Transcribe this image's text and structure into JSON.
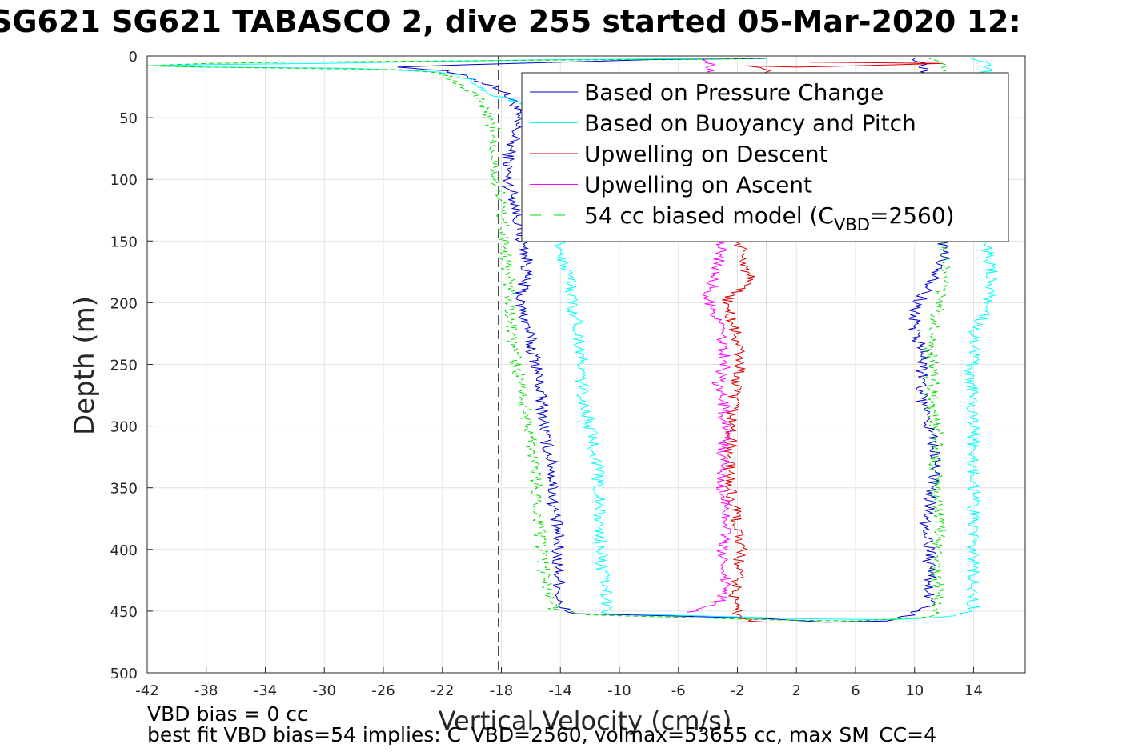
{
  "chart_data": {
    "type": "line",
    "title": "SG621 SG621 TABASCO 2, dive 255 started 05-Mar-2020 12:",
    "xlabel": "Vertical Velocity (cm/s)",
    "ylabel": "Depth (m)",
    "xlim": [
      -42,
      17.5
    ],
    "ylim": [
      500,
      0
    ],
    "y_reversed": true,
    "grid": true,
    "xticks": [
      -42,
      -38,
      -34,
      -30,
      -26,
      -22,
      -18,
      -14,
      -10,
      -6,
      -2,
      2,
      6,
      10,
      14
    ],
    "yticks": [
      0,
      50,
      100,
      150,
      200,
      250,
      300,
      350,
      400,
      450,
      500
    ],
    "reference_lines": [
      {
        "x": 0,
        "style": "solid",
        "color": "#000000"
      },
      {
        "x": -18.2,
        "style": "dashed",
        "color": "#000000"
      }
    ],
    "legend_position": "top-right",
    "legend": [
      {
        "label": "Based on Pressure Change"
      },
      {
        "label": "Based on Buoyancy and Pitch"
      },
      {
        "label": "Upwelling on Descent"
      },
      {
        "label": "Upwelling on Ascent"
      },
      {
        "label": "54 cc biased model (C",
        "sub": "VBD",
        "suffix": "=2560)"
      }
    ],
    "series": [
      {
        "name": "Based on Pressure Change",
        "color": "#0000cc",
        "style": "solid",
        "points": [
          [
            0,
            2
          ],
          [
            -8,
            3
          ],
          [
            -14,
            5
          ],
          [
            -20,
            7
          ],
          [
            -25,
            9
          ],
          [
            -22,
            12
          ],
          [
            -20,
            18
          ],
          [
            -18,
            27
          ],
          [
            -17,
            40
          ],
          [
            -17,
            60
          ],
          [
            -17.5,
            80
          ],
          [
            -17.6,
            100
          ],
          [
            -17,
            120
          ],
          [
            -16.6,
            150
          ],
          [
            -16.2,
            170
          ],
          [
            -16.5,
            185
          ],
          [
            -16.8,
            200
          ],
          [
            -16.2,
            220
          ],
          [
            -16,
            235
          ],
          [
            -15.6,
            250
          ],
          [
            -15.4,
            270
          ],
          [
            -15.2,
            290
          ],
          [
            -15,
            310
          ],
          [
            -14.6,
            330
          ],
          [
            -14.5,
            350
          ],
          [
            -14.4,
            370
          ],
          [
            -14.2,
            390
          ],
          [
            -14.2,
            410
          ],
          [
            -14,
            430
          ],
          [
            -14.2,
            446
          ],
          [
            -13,
            452
          ],
          [
            -6,
            454
          ],
          [
            0,
            456
          ],
          [
            4,
            459
          ],
          [
            8,
            458
          ],
          [
            10,
            452
          ],
          [
            11,
            445
          ],
          [
            11,
            420
          ],
          [
            11,
            400
          ],
          [
            10.8,
            380
          ],
          [
            11,
            360
          ],
          [
            11.5,
            330
          ],
          [
            11,
            300
          ],
          [
            10.5,
            280
          ],
          [
            10.5,
            260
          ],
          [
            10.6,
            240
          ],
          [
            10,
            225
          ],
          [
            10,
            205
          ],
          [
            10.8,
            190
          ],
          [
            11.5,
            180
          ],
          [
            12,
            165
          ],
          [
            12,
            150
          ],
          [
            11.5,
            120
          ],
          [
            10.5,
            100
          ],
          [
            11,
            80
          ],
          [
            11.5,
            60
          ],
          [
            11,
            40
          ],
          [
            10.8,
            20
          ],
          [
            10.5,
            8
          ],
          [
            10,
            2
          ]
        ]
      },
      {
        "name": "Based on Buoyancy and Pitch",
        "color": "#00ffff",
        "style": "solid",
        "points": [
          [
            -3,
            2
          ],
          [
            -15,
            3
          ],
          [
            -25,
            5
          ],
          [
            -30,
            6
          ],
          [
            -38,
            7
          ],
          [
            -42,
            8
          ],
          [
            -38,
            9
          ],
          [
            -28,
            10
          ],
          [
            -22,
            13
          ],
          [
            -20,
            20
          ],
          [
            -19,
            30
          ],
          [
            -16,
            40
          ],
          [
            -15,
            60
          ],
          [
            -14.2,
            80
          ],
          [
            -14.2,
            100
          ],
          [
            -14.2,
            120
          ],
          [
            -14,
            150
          ],
          [
            -13.8,
            170
          ],
          [
            -13.2,
            185
          ],
          [
            -13.2,
            200
          ],
          [
            -12.8,
            220
          ],
          [
            -12.6,
            240
          ],
          [
            -12.6,
            260
          ],
          [
            -12.4,
            280
          ],
          [
            -12,
            300
          ],
          [
            -11.5,
            330
          ],
          [
            -11.4,
            350
          ],
          [
            -11.4,
            370
          ],
          [
            -11.3,
            390
          ],
          [
            -11.2,
            410
          ],
          [
            -11,
            430
          ],
          [
            -10.8,
            445
          ],
          [
            -10.8,
            452
          ],
          [
            -4,
            454
          ],
          [
            2,
            456
          ],
          [
            8,
            457
          ],
          [
            12,
            455
          ],
          [
            14,
            450
          ],
          [
            14,
            430
          ],
          [
            14,
            410
          ],
          [
            14,
            390
          ],
          [
            14,
            370
          ],
          [
            14,
            350
          ],
          [
            14,
            330
          ],
          [
            14,
            310
          ],
          [
            14,
            290
          ],
          [
            14,
            275
          ],
          [
            13.8,
            260
          ],
          [
            14,
            240
          ],
          [
            14,
            220
          ],
          [
            15,
            208
          ],
          [
            15.2,
            190
          ],
          [
            15.2,
            170
          ],
          [
            14.8,
            150
          ],
          [
            15,
            120
          ],
          [
            15,
            90
          ],
          [
            15.5,
            60
          ],
          [
            16,
            32
          ],
          [
            15,
            20
          ],
          [
            14.8,
            5
          ],
          [
            13.8,
            2
          ]
        ]
      },
      {
        "name": "Upwelling on Descent",
        "color": "#dd0000",
        "style": "solid",
        "points": [
          [
            3,
            5
          ],
          [
            12,
            6
          ],
          [
            6,
            8
          ],
          [
            2,
            9
          ],
          [
            -1,
            8
          ],
          [
            0,
            12
          ],
          [
            -1,
            20
          ],
          [
            -1,
            40
          ],
          [
            -1.5,
            60
          ],
          [
            -1.6,
            80
          ],
          [
            -1.8,
            100
          ],
          [
            -1.8,
            120
          ],
          [
            -2,
            150
          ],
          [
            -1.2,
            180
          ],
          [
            -2.8,
            200
          ],
          [
            -2,
            230
          ],
          [
            -1.8,
            250
          ],
          [
            -2.2,
            270
          ],
          [
            -2.4,
            300
          ],
          [
            -2.6,
            330
          ],
          [
            -2.5,
            350
          ],
          [
            -2,
            380
          ],
          [
            -1.8,
            400
          ],
          [
            -2,
            420
          ],
          [
            -2.2,
            440
          ],
          [
            -2,
            452
          ],
          [
            -1.2,
            458
          ],
          [
            0,
            459
          ]
        ]
      },
      {
        "name": "Upwelling on Ascent",
        "color": "#ff00ff",
        "style": "solid",
        "points": [
          [
            -5,
            451
          ],
          [
            -3,
            440
          ],
          [
            -2.8,
            420
          ],
          [
            -3,
            400
          ],
          [
            -2.8,
            380
          ],
          [
            -3,
            350
          ],
          [
            -3,
            320
          ],
          [
            -2.8,
            300
          ],
          [
            -3,
            280
          ],
          [
            -3.4,
            265
          ],
          [
            -2.8,
            250
          ],
          [
            -3,
            230
          ],
          [
            -3.4,
            215
          ],
          [
            -4,
            195
          ],
          [
            -3.6,
            180
          ],
          [
            -3.2,
            160
          ],
          [
            -3,
            140
          ],
          [
            -2.8,
            120
          ],
          [
            -2.6,
            100
          ],
          [
            -3,
            80
          ],
          [
            -3.2,
            60
          ],
          [
            -3.4,
            40
          ],
          [
            -3.4,
            20
          ],
          [
            -3.8,
            8
          ],
          [
            -4,
            2
          ]
        ]
      },
      {
        "name": "54 cc biased model",
        "color": "#00dd00",
        "style": "dashed",
        "points": [
          [
            0,
            2
          ],
          [
            -10,
            3
          ],
          [
            -22,
            4
          ],
          [
            -32,
            5
          ],
          [
            -38,
            6
          ],
          [
            -42,
            8
          ],
          [
            -38,
            9
          ],
          [
            -32,
            10
          ],
          [
            -25,
            11
          ],
          [
            -22,
            14
          ],
          [
            -21,
            22
          ],
          [
            -19.5,
            35
          ],
          [
            -19,
            50
          ],
          [
            -18.5,
            60
          ],
          [
            -18.4,
            80
          ],
          [
            -18.4,
            100
          ],
          [
            -18,
            120
          ],
          [
            -17.8,
            150
          ],
          [
            -17.6,
            170
          ],
          [
            -17.4,
            190
          ],
          [
            -17.4,
            210
          ],
          [
            -17.2,
            230
          ],
          [
            -17,
            250
          ],
          [
            -16.6,
            270
          ],
          [
            -16.4,
            290
          ],
          [
            -16,
            310
          ],
          [
            -15.8,
            330
          ],
          [
            -15.6,
            350
          ],
          [
            -15.4,
            380
          ],
          [
            -15.2,
            410
          ],
          [
            -15,
            430
          ],
          [
            -14.6,
            440
          ],
          [
            -14.4,
            448
          ],
          [
            -12,
            453
          ],
          [
            -6,
            455
          ],
          [
            0,
            457
          ],
          [
            6,
            458
          ],
          [
            11,
            455
          ],
          [
            11.5,
            445
          ],
          [
            11.5,
            420
          ],
          [
            11.5,
            400
          ],
          [
            11.8,
            380
          ],
          [
            11.4,
            350
          ],
          [
            11.4,
            330
          ],
          [
            11.6,
            310
          ],
          [
            11.2,
            290
          ],
          [
            11.2,
            270
          ],
          [
            11.2,
            250
          ],
          [
            11,
            230
          ],
          [
            11.5,
            210
          ],
          [
            12,
            190
          ],
          [
            12.2,
            170
          ],
          [
            12,
            155
          ],
          [
            11.5,
            130
          ],
          [
            11,
            100
          ],
          [
            11.2,
            80
          ],
          [
            11.5,
            60
          ],
          [
            12,
            40
          ],
          [
            12,
            20
          ],
          [
            11.8,
            5
          ],
          [
            11,
            2
          ]
        ]
      }
    ],
    "notes": [
      "VBD bias = 0 cc",
      "best fit VBD bias=54 implies: C_VBD=2560, volmax=53655 cc, max SM_CC=4"
    ]
  }
}
